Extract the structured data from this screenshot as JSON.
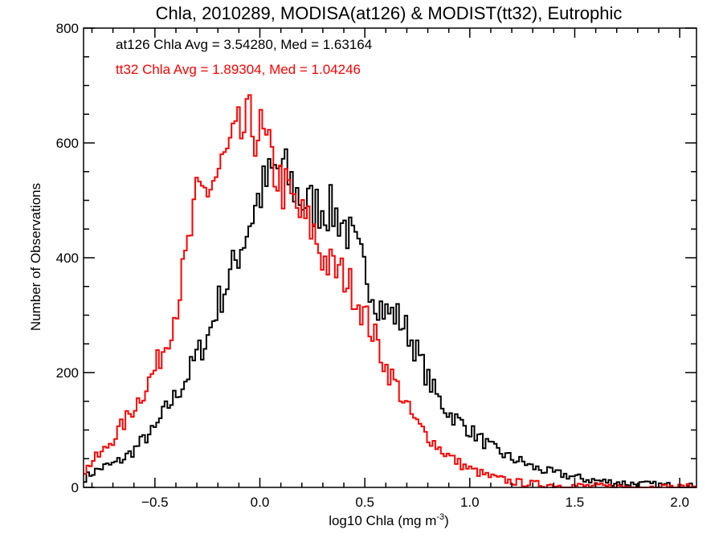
{
  "chart_data": {
    "type": "line",
    "title": "Chla, 2010289, MODISA(at126) & MODIST(tt32), Eutrophic",
    "xlabel": "log10 Chla (mg m",
    "xlabel_sup": "-3",
    "xlabel_end": ")",
    "ylabel": "Number of Observations",
    "xlim": [
      -0.84,
      2.08
    ],
    "ylim": [
      0,
      800
    ],
    "xticks": [
      {
        "v": -0.5,
        "label": "−0.5"
      },
      {
        "v": 0.0,
        "label": "0.0"
      },
      {
        "v": 0.5,
        "label": "0.5"
      },
      {
        "v": 1.0,
        "label": "1.0"
      },
      {
        "v": 1.5,
        "label": "1.5"
      },
      {
        "v": 2.0,
        "label": "2.0"
      }
    ],
    "yticks": [
      {
        "v": 0,
        "label": "0"
      },
      {
        "v": 200,
        "label": "200"
      },
      {
        "v": 400,
        "label": "400"
      },
      {
        "v": 600,
        "label": "600"
      },
      {
        "v": 800,
        "label": "800"
      }
    ],
    "grid": false,
    "legend_placement": "top-left",
    "bin_width": 0.0133,
    "series": [
      {
        "name": "at126 Chla Avg = 3.54280, Med = 1.63164",
        "color": "#000000",
        "x": [
          -0.84,
          -0.8,
          -0.75,
          -0.7,
          -0.65,
          -0.6,
          -0.55,
          -0.5,
          -0.45,
          -0.4,
          -0.35,
          -0.3,
          -0.25,
          -0.2,
          -0.15,
          -0.1,
          -0.05,
          0.0,
          0.05,
          0.1,
          0.15,
          0.2,
          0.25,
          0.3,
          0.35,
          0.4,
          0.45,
          0.5,
          0.55,
          0.6,
          0.65,
          0.7,
          0.75,
          0.8,
          0.85,
          0.9,
          0.95,
          1.0,
          1.05,
          1.1,
          1.15,
          1.2,
          1.25,
          1.3,
          1.35,
          1.4,
          1.45,
          1.5,
          1.55,
          1.6,
          1.65,
          1.7,
          1.75,
          1.8,
          1.85,
          1.9,
          1.95,
          2.0,
          2.08
        ],
        "y": [
          15,
          25,
          35,
          40,
          50,
          65,
          85,
          100,
          135,
          160,
          190,
          230,
          260,
          320,
          360,
          410,
          460,
          510,
          540,
          560,
          530,
          500,
          490,
          490,
          480,
          460,
          420,
          380,
          330,
          305,
          300,
          275,
          235,
          190,
          155,
          130,
          115,
          100,
          85,
          70,
          60,
          50,
          45,
          35,
          30,
          25,
          22,
          18,
          14,
          12,
          10,
          9,
          7,
          6,
          5,
          4,
          3,
          2,
          1
        ]
      },
      {
        "name": "tt32 Chla Avg = 1.89304, Med = 1.04246",
        "color": "#ff0000",
        "x": [
          -0.84,
          -0.8,
          -0.75,
          -0.7,
          -0.65,
          -0.6,
          -0.55,
          -0.5,
          -0.45,
          -0.4,
          -0.35,
          -0.3,
          -0.25,
          -0.2,
          -0.15,
          -0.1,
          -0.05,
          0.0,
          0.05,
          0.1,
          0.15,
          0.2,
          0.25,
          0.3,
          0.35,
          0.4,
          0.45,
          0.5,
          0.55,
          0.6,
          0.65,
          0.7,
          0.75,
          0.8,
          0.85,
          0.9,
          0.95,
          1.0,
          1.05,
          1.1,
          1.15,
          1.2,
          1.25,
          1.3,
          1.35,
          1.4,
          1.45,
          1.5,
          1.55,
          1.6,
          1.65,
          1.7,
          1.75,
          1.8,
          1.85,
          1.9,
          1.95,
          2.0,
          2.08
        ],
        "y": [
          25,
          45,
          60,
          85,
          110,
          140,
          170,
          205,
          250,
          310,
          400,
          500,
          520,
          545,
          580,
          610,
          630,
          620,
          570,
          530,
          500,
          470,
          450,
          400,
          380,
          370,
          340,
          300,
          260,
          210,
          180,
          140,
          110,
          90,
          70,
          55,
          42,
          32,
          25,
          18,
          14,
          10,
          8,
          6,
          5,
          4,
          3,
          3,
          2,
          2,
          1,
          1,
          1,
          0,
          0,
          0,
          0,
          0,
          0
        ]
      }
    ]
  }
}
